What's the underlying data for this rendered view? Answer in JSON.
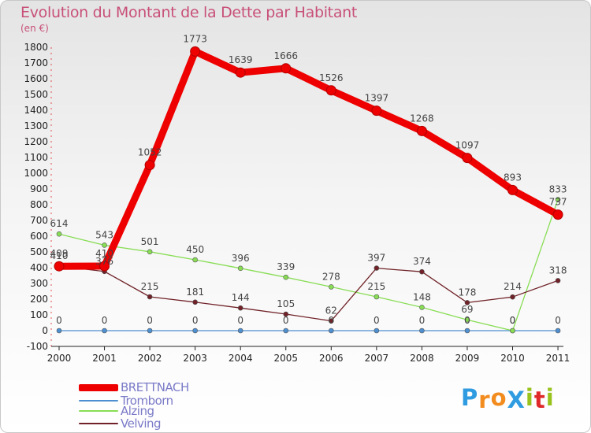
{
  "chart_data": {
    "type": "line",
    "title": "Evolution du Montant de la Dette par Habitant",
    "subtitle": "(en €)",
    "xlabel": "",
    "ylabel": "",
    "ylim": [
      -100,
      1800
    ],
    "yticks": [
      -100,
      0,
      100,
      200,
      300,
      400,
      500,
      600,
      700,
      800,
      900,
      1000,
      1100,
      1200,
      1300,
      1400,
      1500,
      1600,
      1700,
      1800
    ],
    "categories": [
      "2000",
      "2001",
      "2002",
      "2003",
      "2004",
      "2005",
      "2006",
      "2007",
      "2008",
      "2009",
      "2010",
      "2011"
    ],
    "grid": false,
    "series": [
      {
        "name": "BRETTNACH",
        "color": "#ee0000",
        "values": [
          409,
          410,
          1052,
          1773,
          1639,
          1666,
          1526,
          1397,
          1268,
          1097,
          893,
          737
        ]
      },
      {
        "name": "Tromborn",
        "color": "#4d8fd0",
        "values": [
          0,
          0,
          0,
          0,
          0,
          0,
          0,
          0,
          0,
          0,
          0,
          0
        ]
      },
      {
        "name": "Alzing",
        "color": "#88dd55",
        "values": [
          614,
          543,
          501,
          450,
          396,
          339,
          278,
          215,
          148,
          69,
          0,
          833
        ]
      },
      {
        "name": "Velving",
        "color": "#702228",
        "values": [
          410,
          376,
          215,
          181,
          144,
          105,
          62,
          397,
          374,
          178,
          214,
          318
        ]
      }
    ]
  },
  "logo": {
    "text": "ProXiti",
    "letters": [
      "P",
      "r",
      "o",
      "X",
      "i",
      "t",
      "i"
    ],
    "colors": [
      "#2f9be0",
      "#f28c1e",
      "#f28c1e",
      "#2f9be0",
      "#9ac21d",
      "#e02a2a",
      "#9ac21d"
    ]
  }
}
